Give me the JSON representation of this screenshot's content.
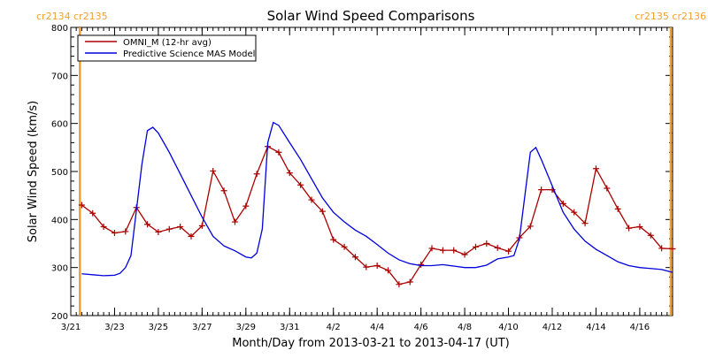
{
  "colors": {
    "omni": "#aa0000",
    "model": "#0000dd",
    "carrington": "#f0a030",
    "axis": "#000000",
    "background": "#ffffff"
  },
  "chart_data": {
    "type": "line",
    "title": "Solar Wind Speed Comparisons",
    "xlabel": "Month/Day from 2013-03-21 to 2013-04-17 (UT)",
    "ylabel": "Solar Wind Speed (km/s)",
    "xlim": [
      "2013-03-21",
      "2013-04-17T12:00"
    ],
    "ylim": [
      200,
      800
    ],
    "grid": false,
    "legend_position": "top-left",
    "x_ticks": [
      {
        "date": "2013-03-21",
        "label": "3/21"
      },
      {
        "date": "2013-03-23",
        "label": "3/23"
      },
      {
        "date": "2013-03-25",
        "label": "3/25"
      },
      {
        "date": "2013-03-27",
        "label": "3/27"
      },
      {
        "date": "2013-03-29",
        "label": "3/29"
      },
      {
        "date": "2013-03-31",
        "label": "3/31"
      },
      {
        "date": "2013-04-02",
        "label": "4/2"
      },
      {
        "date": "2013-04-04",
        "label": "4/4"
      },
      {
        "date": "2013-04-06",
        "label": "4/6"
      },
      {
        "date": "2013-04-08",
        "label": "4/8"
      },
      {
        "date": "2013-04-10",
        "label": "4/10"
      },
      {
        "date": "2013-04-12",
        "label": "4/12"
      },
      {
        "date": "2013-04-14",
        "label": "4/14"
      },
      {
        "date": "2013-04-16",
        "label": "4/16"
      }
    ],
    "y_ticks": [
      200,
      300,
      400,
      500,
      600,
      700,
      800
    ],
    "carrington_markers": [
      {
        "date": "2013-03-21T10:00",
        "label": "cr2134 cr2135",
        "align": "left"
      },
      {
        "date": "2013-04-17T10:00",
        "label": "cr2135 cr2136",
        "align": "right"
      }
    ],
    "series": [
      {
        "name": "OMNI_M (12-hr avg)",
        "style": "line-plus",
        "points": [
          [
            "2013-03-21T12:00",
            430
          ],
          [
            "2013-03-22T00:00",
            413
          ],
          [
            "2013-03-22T12:00",
            385
          ],
          [
            "2013-03-23T00:00",
            372
          ],
          [
            "2013-03-23T12:00",
            375
          ],
          [
            "2013-03-24T00:00",
            425
          ],
          [
            "2013-03-24T12:00",
            390
          ],
          [
            "2013-03-25T00:00",
            374
          ],
          [
            "2013-03-25T12:00",
            380
          ],
          [
            "2013-03-26T00:00",
            385
          ],
          [
            "2013-03-26T12:00",
            365
          ],
          [
            "2013-03-27T00:00",
            387
          ],
          [
            "2013-03-27T12:00",
            501
          ],
          [
            "2013-03-28T00:00",
            460
          ],
          [
            "2013-03-28T12:00",
            395
          ],
          [
            "2013-03-29T00:00",
            428
          ],
          [
            "2013-03-29T12:00",
            495
          ],
          [
            "2013-03-30T00:00",
            552
          ],
          [
            "2013-03-30T12:00",
            540
          ],
          [
            "2013-03-31T00:00",
            497
          ],
          [
            "2013-03-31T12:00",
            472
          ],
          [
            "2013-04-01T00:00",
            441
          ],
          [
            "2013-04-01T12:00",
            417
          ],
          [
            "2013-04-02T00:00",
            358
          ],
          [
            "2013-04-02T12:00",
            343
          ],
          [
            "2013-04-03T00:00",
            322
          ],
          [
            "2013-04-03T12:00",
            301
          ],
          [
            "2013-04-04T00:00",
            304
          ],
          [
            "2013-04-04T12:00",
            294
          ],
          [
            "2013-04-05T00:00",
            265
          ],
          [
            "2013-04-05T12:00",
            270
          ],
          [
            "2013-04-06T00:00",
            306
          ],
          [
            "2013-04-06T12:00",
            340
          ],
          [
            "2013-04-07T00:00",
            336
          ],
          [
            "2013-04-07T12:00",
            336
          ],
          [
            "2013-04-08T00:00",
            327
          ],
          [
            "2013-04-08T12:00",
            343
          ],
          [
            "2013-04-09T00:00",
            350
          ],
          [
            "2013-04-09T12:00",
            341
          ],
          [
            "2013-04-10T00:00",
            334
          ],
          [
            "2013-04-10T12:00",
            362
          ],
          [
            "2013-04-11T00:00",
            386
          ],
          [
            "2013-04-11T12:00",
            462
          ],
          [
            "2013-04-12T00:00",
            462
          ],
          [
            "2013-04-12T12:00",
            433
          ],
          [
            "2013-04-13T00:00",
            415
          ],
          [
            "2013-04-13T12:00",
            392
          ],
          [
            "2013-04-14T00:00",
            506
          ],
          [
            "2013-04-14T12:00",
            465
          ],
          [
            "2013-04-15T00:00",
            422
          ],
          [
            "2013-04-15T12:00",
            382
          ],
          [
            "2013-04-16T00:00",
            385
          ],
          [
            "2013-04-16T12:00",
            367
          ],
          [
            "2013-04-17T00:00",
            340
          ],
          [
            "2013-04-17T12:00",
            339
          ]
        ]
      },
      {
        "name": "Predictive Science MAS Model",
        "style": "line",
        "points": [
          [
            "2013-03-21T12:00",
            287
          ],
          [
            "2013-03-22T00:00",
            285
          ],
          [
            "2013-03-22T12:00",
            283
          ],
          [
            "2013-03-23T00:00",
            284
          ],
          [
            "2013-03-23T06:00",
            288
          ],
          [
            "2013-03-23T12:00",
            300
          ],
          [
            "2013-03-23T18:00",
            325
          ],
          [
            "2013-03-24T00:00",
            420
          ],
          [
            "2013-03-24T06:00",
            515
          ],
          [
            "2013-03-24T12:00",
            585
          ],
          [
            "2013-03-24T18:00",
            592
          ],
          [
            "2013-03-25T00:00",
            580
          ],
          [
            "2013-03-25T12:00",
            540
          ],
          [
            "2013-03-26T00:00",
            495
          ],
          [
            "2013-03-26T12:00",
            450
          ],
          [
            "2013-03-27T00:00",
            405
          ],
          [
            "2013-03-27T12:00",
            365
          ],
          [
            "2013-03-28T00:00",
            345
          ],
          [
            "2013-03-28T12:00",
            335
          ],
          [
            "2013-03-29T00:00",
            322
          ],
          [
            "2013-03-29T06:00",
            320
          ],
          [
            "2013-03-29T12:00",
            330
          ],
          [
            "2013-03-29T18:00",
            380
          ],
          [
            "2013-03-30T00:00",
            560
          ],
          [
            "2013-03-30T06:00",
            602
          ],
          [
            "2013-03-30T12:00",
            596
          ],
          [
            "2013-03-31T00:00",
            560
          ],
          [
            "2013-03-31T12:00",
            525
          ],
          [
            "2013-04-01T00:00",
            485
          ],
          [
            "2013-04-01T12:00",
            445
          ],
          [
            "2013-04-02T00:00",
            415
          ],
          [
            "2013-04-02T12:00",
            395
          ],
          [
            "2013-04-03T00:00",
            378
          ],
          [
            "2013-04-03T12:00",
            365
          ],
          [
            "2013-04-04T00:00",
            348
          ],
          [
            "2013-04-04T12:00",
            330
          ],
          [
            "2013-04-05T00:00",
            316
          ],
          [
            "2013-04-05T12:00",
            308
          ],
          [
            "2013-04-06T00:00",
            304
          ],
          [
            "2013-04-06T12:00",
            304
          ],
          [
            "2013-04-07T00:00",
            306
          ],
          [
            "2013-04-07T12:00",
            303
          ],
          [
            "2013-04-08T00:00",
            300
          ],
          [
            "2013-04-08T12:00",
            300
          ],
          [
            "2013-04-09T00:00",
            305
          ],
          [
            "2013-04-09T12:00",
            318
          ],
          [
            "2013-04-10T00:00",
            322
          ],
          [
            "2013-04-10T06:00",
            325
          ],
          [
            "2013-04-10T12:00",
            360
          ],
          [
            "2013-04-10T18:00",
            450
          ],
          [
            "2013-04-11T00:00",
            540
          ],
          [
            "2013-04-11T06:00",
            550
          ],
          [
            "2013-04-11T12:00",
            525
          ],
          [
            "2013-04-12T00:00",
            470
          ],
          [
            "2013-04-12T12:00",
            415
          ],
          [
            "2013-04-13T00:00",
            380
          ],
          [
            "2013-04-13T12:00",
            355
          ],
          [
            "2013-04-14T00:00",
            338
          ],
          [
            "2013-04-14T12:00",
            325
          ],
          [
            "2013-04-15T00:00",
            312
          ],
          [
            "2013-04-15T12:00",
            304
          ],
          [
            "2013-04-16T00:00",
            300
          ],
          [
            "2013-04-16T12:00",
            298
          ],
          [
            "2013-04-17T00:00",
            296
          ],
          [
            "2013-04-17T12:00",
            290
          ]
        ]
      }
    ]
  }
}
